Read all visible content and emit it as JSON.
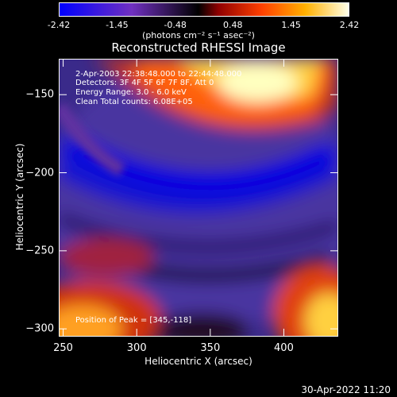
{
  "chart_data": {
    "type": "heatmap",
    "title": "Reconstructed RHESSI Image",
    "xlabel": "Heliocentric X (arcsec)",
    "ylabel": "Heliocentric Y (arcsec)",
    "xlim": [
      247,
      437
    ],
    "ylim": [
      -305,
      -127
    ],
    "x_ticks": [
      "250",
      "300",
      "350",
      "400"
    ],
    "y_ticks": [
      "-150",
      "-200",
      "-250",
      "-300"
    ],
    "colorbar": {
      "ticks": [
        "-2.42",
        "-1.45",
        "-0.48",
        "0.48",
        "1.45",
        "2.42"
      ],
      "range": [
        -2.42,
        2.42
      ],
      "units": "(photons cm⁻² s⁻¹ asec⁻²)",
      "colormap": [
        "#0000ff",
        "#8040c0",
        "#000000",
        "#b00000",
        "#ff6000",
        "#ffd000",
        "#ffffe0"
      ]
    },
    "annotations": {
      "time": "2-Apr-2003 22:38:48.000 to 22:44:48.000",
      "detectors": "Detectors: 3F 4F 5F 6F 7F 8F, Att 0",
      "energy": "Energy Range: 3.0 - 6.0 keV",
      "clean": "Clean    Total counts: 6.08E+05",
      "peak": "Position of Peak = [345,-118]"
    },
    "features": [
      {
        "name": "bright arc top",
        "x": 355,
        "y": -150,
        "value": 2.3
      },
      {
        "name": "bright top right",
        "x": 360,
        "y": -130,
        "value": 2.4
      },
      {
        "name": "dark blue band",
        "x": 350,
        "y": -200,
        "value": -2.2
      },
      {
        "name": "red bottom right",
        "x": 425,
        "y": -295,
        "value": 2.2
      },
      {
        "name": "red bottom left",
        "x": 265,
        "y": -295,
        "value": 1.6
      },
      {
        "name": "red left band",
        "x": 280,
        "y": -250,
        "value": 0.8
      }
    ]
  },
  "footer": {
    "timestamp": "30-Apr-2022 11:20"
  }
}
